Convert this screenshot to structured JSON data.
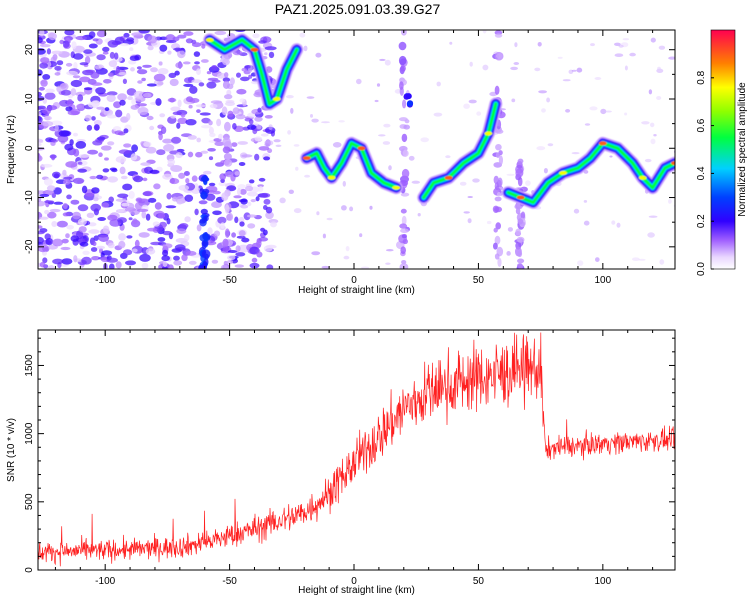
{
  "title": "PAZ1.2025.091.03.39.G27",
  "chart_data": [
    {
      "type": "heatmap",
      "xlabel": "Height of straight line (km)",
      "ylabel": "Frequency (Hz)",
      "xlim": [
        -127,
        129
      ],
      "ylim": [
        -24.5,
        24
      ],
      "xticks": [
        -100,
        -50,
        0,
        50,
        100
      ],
      "yticks": [
        -20,
        -10,
        0,
        10,
        20
      ],
      "colorbar": {
        "label": "Normalized spectral amplitude",
        "range": [
          0,
          1
        ],
        "ticks": [
          0.0,
          0.2,
          0.4,
          0.6,
          0.8
        ]
      },
      "ridge": [
        {
          "x": -58,
          "y": 22
        },
        {
          "x": -52,
          "y": 20
        },
        {
          "x": -45,
          "y": 22
        },
        {
          "x": -40,
          "y": 20
        },
        {
          "x": -37,
          "y": 15
        },
        {
          "x": -34,
          "y": 9
        },
        {
          "x": -31,
          "y": 10
        },
        {
          "x": -27,
          "y": 16
        },
        {
          "x": -23,
          "y": 20
        },
        {
          "x": -19,
          "y": -2
        },
        {
          "x": -15,
          "y": -1
        },
        {
          "x": -12,
          "y": -4
        },
        {
          "x": -9,
          "y": -6
        },
        {
          "x": -5,
          "y": -3
        },
        {
          "x": -1,
          "y": 1
        },
        {
          "x": 3,
          "y": 0
        },
        {
          "x": 7,
          "y": -5
        },
        {
          "x": 12,
          "y": -7
        },
        {
          "x": 17,
          "y": -8
        },
        {
          "x": 28,
          "y": -10
        },
        {
          "x": 32,
          "y": -7
        },
        {
          "x": 38,
          "y": -6
        },
        {
          "x": 44,
          "y": -3
        },
        {
          "x": 50,
          "y": -1
        },
        {
          "x": 54,
          "y": 3
        },
        {
          "x": 57,
          "y": 9
        },
        {
          "x": 62,
          "y": -9
        },
        {
          "x": 67,
          "y": -10
        },
        {
          "x": 72,
          "y": -11
        },
        {
          "x": 78,
          "y": -7
        },
        {
          "x": 84,
          "y": -5
        },
        {
          "x": 90,
          "y": -4
        },
        {
          "x": 95,
          "y": -2
        },
        {
          "x": 100,
          "y": 1
        },
        {
          "x": 106,
          "y": 0
        },
        {
          "x": 112,
          "y": -3
        },
        {
          "x": 116,
          "y": -6
        },
        {
          "x": 120,
          "y": -8
        },
        {
          "x": 125,
          "y": -4
        },
        {
          "x": 129,
          "y": -3
        }
      ]
    },
    {
      "type": "line",
      "xlabel": "Height of straight line (km)",
      "ylabel": "SNR (10 * v/v)",
      "xlim": [
        -127,
        129
      ],
      "ylim": [
        0,
        1760
      ],
      "xticks": [
        -100,
        -50,
        0,
        50,
        100
      ],
      "yticks": [
        0,
        500,
        1000,
        1500
      ],
      "color": "#ff2020",
      "series": [
        {
          "x": [
            -127,
            -110,
            -90,
            -70,
            -60,
            -50,
            -40,
            -30,
            -20,
            -10,
            0,
            10,
            20,
            30,
            40,
            50,
            60,
            70,
            75,
            77,
            80,
            90,
            100,
            110,
            120,
            129
          ],
          "values": [
            130,
            140,
            150,
            170,
            200,
            250,
            300,
            360,
            420,
            560,
            780,
            980,
            1180,
            1300,
            1370,
            1410,
            1440,
            1470,
            1480,
            870,
            900,
            910,
            930,
            940,
            950,
            950
          ]
        }
      ]
    }
  ]
}
